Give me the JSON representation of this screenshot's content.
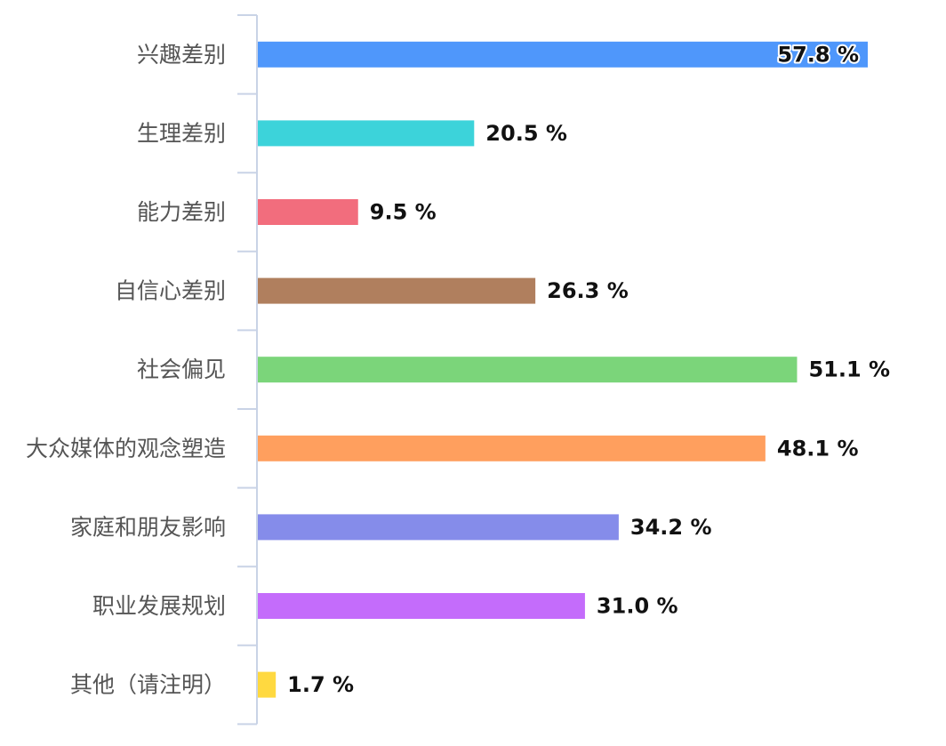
{
  "chart_data": {
    "type": "bar",
    "orientation": "horizontal",
    "categories": [
      "兴趣差别",
      "生理差别",
      "能力差别",
      "自信心差别",
      "社会偏见",
      "大众媒体的观念塑造",
      "家庭和朋友影响",
      "职业发展规划",
      "其他（请注明）"
    ],
    "values": [
      57.8,
      20.5,
      9.5,
      26.3,
      51.1,
      48.1,
      34.2,
      31.0,
      1.7
    ],
    "value_labels": [
      "57.8 %",
      "20.5 %",
      "9.5 %",
      "26.3 %",
      "51.1 %",
      "48.1 %",
      "34.2 %",
      "31.0 %",
      "1.7 %"
    ],
    "colors": [
      "#4f97fb",
      "#3cd3da",
      "#f26d7d",
      "#b07f5e",
      "#7bd57a",
      "#ff9f5e",
      "#858cea",
      "#c46cfb",
      "#ffd940"
    ],
    "unit": "%",
    "xlim": [
      0,
      57.8
    ],
    "grid": false,
    "legend": "none"
  }
}
